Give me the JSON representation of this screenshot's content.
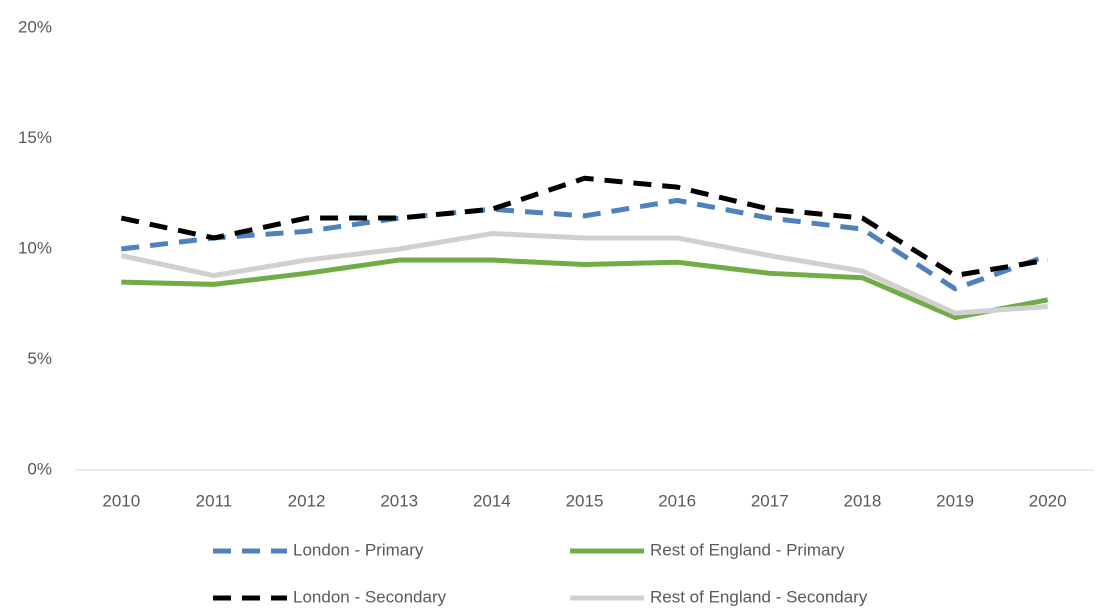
{
  "chart_data": {
    "type": "line",
    "categories": [
      "2010",
      "2011",
      "2012",
      "2013",
      "2014",
      "2015",
      "2016",
      "2017",
      "2018",
      "2019",
      "2020"
    ],
    "series": [
      {
        "name": "London - Primary",
        "color": "#4f81bd",
        "dashed": true,
        "values": [
          10.0,
          10.5,
          10.8,
          11.4,
          11.8,
          11.5,
          12.2,
          11.4,
          10.9,
          8.2,
          9.7
        ]
      },
      {
        "name": "Rest of England - Primary",
        "color": "#70ad47",
        "dashed": false,
        "values": [
          8.5,
          8.4,
          8.9,
          9.5,
          9.5,
          9.3,
          9.4,
          8.9,
          8.7,
          6.9,
          7.7
        ]
      },
      {
        "name": "London - Secondary",
        "color": "#000000",
        "dashed": true,
        "values": [
          11.4,
          10.5,
          11.4,
          11.4,
          11.8,
          13.2,
          12.8,
          11.8,
          11.4,
          8.8,
          9.5
        ]
      },
      {
        "name": "Rest of England - Secondary",
        "color": "#d0d0d0",
        "dashed": false,
        "values": [
          9.7,
          8.8,
          9.5,
          10.0,
          10.7,
          10.5,
          10.5,
          9.7,
          9.0,
          7.1,
          7.4
        ]
      }
    ],
    "ylim": [
      0,
      20
    ],
    "yticks": [
      {
        "value": 0,
        "label": "0%"
      },
      {
        "value": 5,
        "label": "5%"
      },
      {
        "value": 10,
        "label": "10%"
      },
      {
        "value": 15,
        "label": "15%"
      },
      {
        "value": 20,
        "label": "20%"
      }
    ],
    "grid": false
  }
}
